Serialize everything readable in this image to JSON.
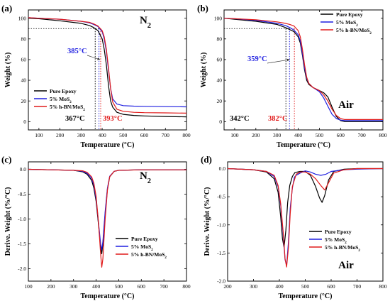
{
  "colors": {
    "pure": "#000000",
    "mos2": "#1f1fe0",
    "hbn": "#e11b1b"
  },
  "chart_data": [
    {
      "id": "a",
      "type": "line",
      "panel_label": "(a)",
      "gas": "N",
      "gas_sub": "2",
      "xlabel": "Temperature (°C)",
      "ylabel": "Weight (%)",
      "xlim": [
        50,
        800
      ],
      "ylim": [
        -8,
        108
      ],
      "xticks": [
        "100",
        "200",
        "300",
        "400",
        "500",
        "600",
        "700",
        "800"
      ],
      "yticks": [
        "0",
        "20",
        "40",
        "60",
        "80",
        "100"
      ],
      "legend": {
        "position": "bottom-left",
        "items": [
          {
            "key": "pure",
            "text": "Pure Epoxy",
            "sub": ""
          },
          {
            "key": "mos2",
            "text": "5% MoS",
            "sub": "2"
          },
          {
            "key": "hbn",
            "text": "5% h-BN/MoS",
            "sub": "2"
          }
        ]
      },
      "annotations": [
        {
          "key": "mos2",
          "text": "385°C"
        },
        {
          "key": "pure",
          "text": "367°C"
        },
        {
          "key": "hbn",
          "text": "393°C"
        }
      ],
      "ref_y": 90,
      "vlines": [
        {
          "key": "pure",
          "x": 367
        },
        {
          "key": "mos2",
          "x": 385
        },
        {
          "key": "hbn",
          "x": 393
        }
      ],
      "series": [
        {
          "key": "pure",
          "x": [
            50,
            100,
            200,
            300,
            340,
            360,
            380,
            400,
            410,
            420,
            430,
            440,
            450,
            470,
            500,
            550,
            600,
            700,
            800
          ],
          "y": [
            100,
            99.5,
            97.5,
            95,
            93,
            91,
            88,
            80,
            70,
            55,
            35,
            20,
            14,
            9,
            7,
            6,
            5.5,
            5,
            4.6
          ]
        },
        {
          "key": "mos2",
          "x": [
            50,
            100,
            200,
            300,
            340,
            360,
            380,
            400,
            410,
            420,
            430,
            440,
            450,
            470,
            500,
            550,
            600,
            700,
            800
          ],
          "y": [
            100.5,
            100,
            99,
            97,
            95.5,
            94,
            92,
            87,
            80,
            68,
            50,
            32,
            22,
            17,
            15.5,
            15,
            14.8,
            14.5,
            14.3
          ]
        },
        {
          "key": "hbn",
          "x": [
            50,
            100,
            200,
            300,
            340,
            360,
            380,
            400,
            410,
            420,
            430,
            440,
            450,
            470,
            500,
            550,
            600,
            700,
            800
          ],
          "y": [
            100.5,
            100,
            99,
            97,
            96,
            94.5,
            92.5,
            88,
            82,
            70,
            52,
            32,
            19,
            12,
            10,
            9,
            8.7,
            8.5,
            8.2
          ]
        }
      ]
    },
    {
      "id": "b",
      "type": "line",
      "panel_label": "(b)",
      "gas": "Air",
      "gas_sub": "",
      "xlabel": "Temperature (°C)",
      "ylabel": "Weight (%)",
      "xlim": [
        50,
        800
      ],
      "ylim": [
        -8,
        108
      ],
      "xticks": [
        "100",
        "200",
        "300",
        "400",
        "500",
        "600",
        "700",
        "800"
      ],
      "yticks": [
        "0",
        "20",
        "40",
        "60",
        "80",
        "100"
      ],
      "legend": {
        "position": "top-right",
        "items": [
          {
            "key": "pure",
            "text": "Pure Epoxy",
            "sub": ""
          },
          {
            "key": "mos2",
            "text": "5% MoS",
            "sub": "2"
          },
          {
            "key": "hbn",
            "text": "5% h-BN/MoS",
            "sub": "2"
          }
        ]
      },
      "annotations": [
        {
          "key": "mos2",
          "text": "359°C"
        },
        {
          "key": "pure",
          "text": "342°C"
        },
        {
          "key": "hbn",
          "text": "382°C"
        }
      ],
      "ref_y": 90,
      "vlines": [
        {
          "key": "pure",
          "x": 342
        },
        {
          "key": "mos2",
          "x": 359
        },
        {
          "key": "hbn",
          "x": 382
        }
      ],
      "series": [
        {
          "key": "pure",
          "x": [
            50,
            100,
            200,
            300,
            340,
            360,
            380,
            400,
            410,
            420,
            430,
            440,
            450,
            470,
            500,
            520,
            540,
            560,
            580,
            600,
            620,
            700,
            800
          ],
          "y": [
            100,
            99,
            97,
            94,
            91,
            89,
            87,
            82,
            76,
            64,
            50,
            40,
            36,
            33,
            30,
            28,
            24,
            14,
            5,
            1,
            0,
            0,
            0
          ]
        },
        {
          "key": "mos2",
          "x": [
            50,
            100,
            200,
            300,
            340,
            360,
            380,
            400,
            410,
            420,
            430,
            440,
            450,
            470,
            500,
            520,
            540,
            560,
            580,
            600,
            620,
            700,
            800
          ],
          "y": [
            100,
            99.5,
            98,
            95,
            93,
            91,
            88.5,
            84,
            78,
            66,
            52,
            42,
            37,
            33,
            29,
            23,
            15,
            7,
            3,
            1.5,
            1,
            1,
            1
          ]
        },
        {
          "key": "hbn",
          "x": [
            50,
            100,
            200,
            300,
            340,
            360,
            380,
            400,
            410,
            420,
            430,
            440,
            450,
            470,
            500,
            520,
            540,
            560,
            580,
            600,
            620,
            700,
            800
          ],
          "y": [
            100,
            99.5,
            98.5,
            96.5,
            95,
            94,
            92.5,
            88,
            82,
            70,
            55,
            43,
            37,
            33,
            30,
            26,
            20,
            12,
            6,
            3,
            2,
            2,
            2
          ]
        }
      ]
    },
    {
      "id": "c",
      "type": "line",
      "panel_label": "(c)",
      "gas": "N",
      "gas_sub": "2",
      "xlabel": "Temperature (°C)",
      "ylabel": "Derive. Weight (%/°C)",
      "xlim": [
        100,
        800
      ],
      "ylim": [
        -2.25,
        0.15
      ],
      "xticks": [
        "100",
        "200",
        "300",
        "400",
        "500",
        "600",
        "700",
        "800"
      ],
      "yticks": [
        "-2.0",
        "-1.5",
        "-1.0",
        "-0.5",
        "0.0"
      ],
      "legend": {
        "position": "bottom-right",
        "items": [
          {
            "key": "pure",
            "text": "Pure Epoxy",
            "sub": ""
          },
          {
            "key": "mos2",
            "text": "5% MoS",
            "sub": "2"
          },
          {
            "key": "hbn",
            "text": "5% h-BN/MoS",
            "sub": "2"
          }
        ]
      },
      "annotations": [],
      "series": [
        {
          "key": "pure",
          "x": [
            100,
            200,
            300,
            340,
            360,
            380,
            390,
            400,
            410,
            420,
            425,
            430,
            440,
            450,
            460,
            480,
            500,
            600,
            700,
            800
          ],
          "y": [
            0,
            -0.01,
            -0.02,
            -0.05,
            -0.1,
            -0.22,
            -0.38,
            -0.65,
            -1.1,
            -1.55,
            -1.7,
            -1.5,
            -0.9,
            -0.4,
            -0.15,
            -0.04,
            -0.02,
            -0.01,
            -0.01,
            -0.01
          ]
        },
        {
          "key": "mos2",
          "x": [
            100,
            200,
            300,
            340,
            360,
            380,
            390,
            400,
            410,
            420,
            425,
            430,
            440,
            450,
            460,
            480,
            500,
            600,
            700,
            800
          ],
          "y": [
            0,
            -0.01,
            -0.02,
            -0.04,
            -0.08,
            -0.18,
            -0.32,
            -0.6,
            -1.05,
            -1.5,
            -1.62,
            -1.45,
            -0.85,
            -0.38,
            -0.14,
            -0.04,
            -0.02,
            -0.01,
            -0.01,
            -0.01
          ]
        },
        {
          "key": "hbn",
          "x": [
            100,
            200,
            300,
            340,
            360,
            380,
            390,
            400,
            410,
            420,
            425,
            430,
            440,
            450,
            460,
            480,
            500,
            600,
            700,
            800
          ],
          "y": [
            0,
            -0.01,
            -0.02,
            -0.03,
            -0.06,
            -0.15,
            -0.28,
            -0.55,
            -1.05,
            -1.7,
            -1.97,
            -1.8,
            -1.0,
            -0.42,
            -0.15,
            -0.04,
            -0.02,
            -0.01,
            -0.01,
            -0.01
          ]
        }
      ]
    },
    {
      "id": "d",
      "type": "line",
      "panel_label": "(d)",
      "gas": "Air",
      "gas_sub": "",
      "xlabel": "Temperature (°C)",
      "ylabel": "Derive. Weight (%/°C)",
      "xlim": [
        200,
        800
      ],
      "ylim": [
        -2.0,
        0.12
      ],
      "xticks": [
        "200",
        "300",
        "400",
        "500",
        "600",
        "700",
        "800"
      ],
      "yticks": [
        "-2.0",
        "-1.5",
        "-1.0",
        "-0.5",
        "0.0"
      ],
      "legend": {
        "position": "bottom-right",
        "items": [
          {
            "key": "pure",
            "text": "Pure Epoxy",
            "sub": ""
          },
          {
            "key": "mos2",
            "text": "5% MoS",
            "sub": "2"
          },
          {
            "key": "hbn",
            "text": "5% h-BN/MoS",
            "sub": "2"
          }
        ]
      },
      "annotations": [],
      "series": [
        {
          "key": "pure",
          "x": [
            200,
            300,
            350,
            380,
            395,
            405,
            412,
            418,
            425,
            432,
            440,
            450,
            460,
            480,
            500,
            520,
            540,
            555,
            565,
            575,
            590,
            610,
            650,
            700,
            800
          ],
          "y": [
            0,
            -0.02,
            -0.06,
            -0.18,
            -0.42,
            -0.85,
            -1.25,
            -1.4,
            -1.1,
            -0.6,
            -0.3,
            -0.14,
            -0.07,
            -0.05,
            -0.05,
            -0.12,
            -0.32,
            -0.52,
            -0.6,
            -0.48,
            -0.2,
            -0.05,
            -0.01,
            0,
            0
          ]
        },
        {
          "key": "mos2",
          "x": [
            200,
            300,
            350,
            380,
            395,
            405,
            415,
            422,
            428,
            435,
            442,
            450,
            458,
            465,
            480,
            500,
            520,
            540,
            560,
            580,
            600,
            650,
            700,
            800
          ],
          "y": [
            0,
            -0.02,
            -0.05,
            -0.14,
            -0.32,
            -0.65,
            -1.2,
            -1.62,
            -1.72,
            -1.3,
            -0.7,
            -0.35,
            -0.15,
            -0.12,
            -0.08,
            -0.04,
            -0.06,
            -0.1,
            -0.12,
            -0.1,
            -0.05,
            -0.02,
            -0.01,
            0
          ]
        },
        {
          "key": "hbn",
          "x": [
            200,
            300,
            350,
            380,
            395,
            405,
            415,
            422,
            428,
            435,
            442,
            450,
            465,
            480,
            500,
            520,
            540,
            560,
            575,
            590,
            610,
            650,
            700,
            800
          ],
          "y": [
            0,
            -0.02,
            -0.05,
            -0.12,
            -0.3,
            -0.62,
            -1.15,
            -1.6,
            -1.75,
            -1.4,
            -0.8,
            -0.32,
            -0.1,
            -0.06,
            -0.06,
            -0.1,
            -0.18,
            -0.3,
            -0.38,
            -0.25,
            -0.08,
            -0.02,
            0,
            0
          ]
        }
      ]
    }
  ]
}
